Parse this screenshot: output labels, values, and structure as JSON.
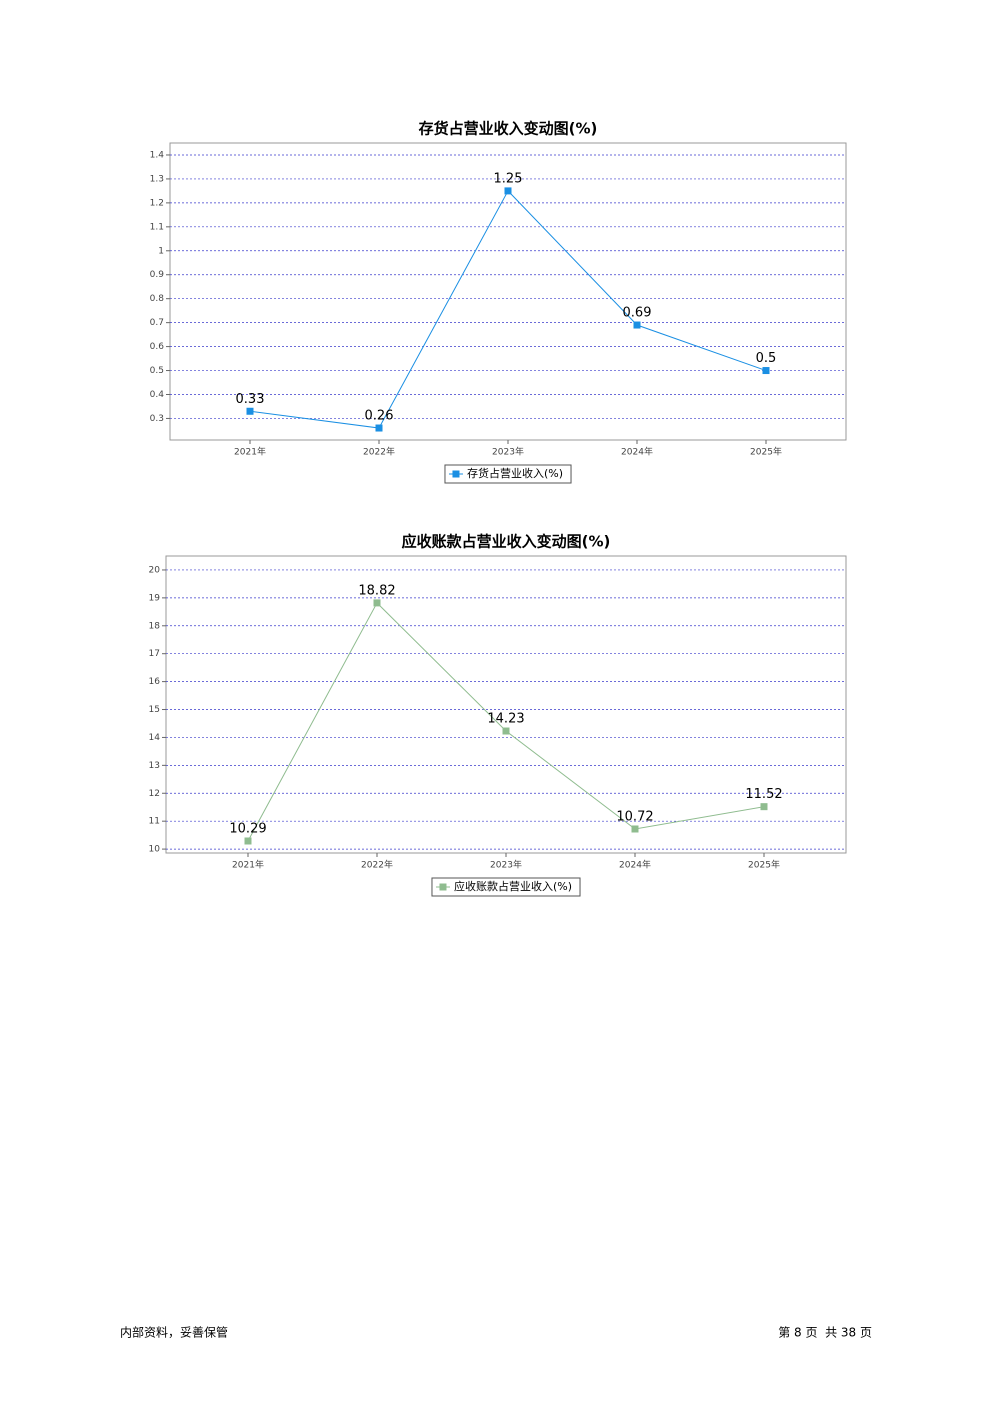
{
  "chart_data": [
    {
      "type": "line",
      "title": "存货占营业收入变动图(%)",
      "categories": [
        "2021年",
        "2022年",
        "2023年",
        "2024年",
        "2025年"
      ],
      "series": [
        {
          "name": "存货占营业收入(%)",
          "color": "#1a8fe3",
          "values": [
            0.33,
            0.26,
            1.25,
            0.69,
            0.5
          ]
        }
      ],
      "ylim": [
        0.21,
        1.45
      ],
      "yticks": [
        0.3,
        0.4,
        0.5,
        0.6,
        0.7,
        0.8,
        0.9,
        1.0,
        1.1,
        1.2,
        1.3,
        1.4
      ],
      "grid": true
    },
    {
      "type": "line",
      "title": "应收账款占营业收入变动图(%)",
      "categories": [
        "2021年",
        "2022年",
        "2023年",
        "2024年",
        "2025年"
      ],
      "series": [
        {
          "name": "应收账款占营业收入(%)",
          "color": "#8fbc8f",
          "values": [
            10.29,
            18.82,
            14.23,
            10.72,
            11.52
          ]
        }
      ],
      "ylim": [
        9.86,
        20.5
      ],
      "yticks": [
        10,
        11,
        12,
        13,
        14,
        15,
        16,
        17,
        18,
        19,
        20
      ],
      "grid": true
    }
  ],
  "footer": {
    "left": "内部资料，妥善保管",
    "right": "第 8 页  共 38 页"
  }
}
